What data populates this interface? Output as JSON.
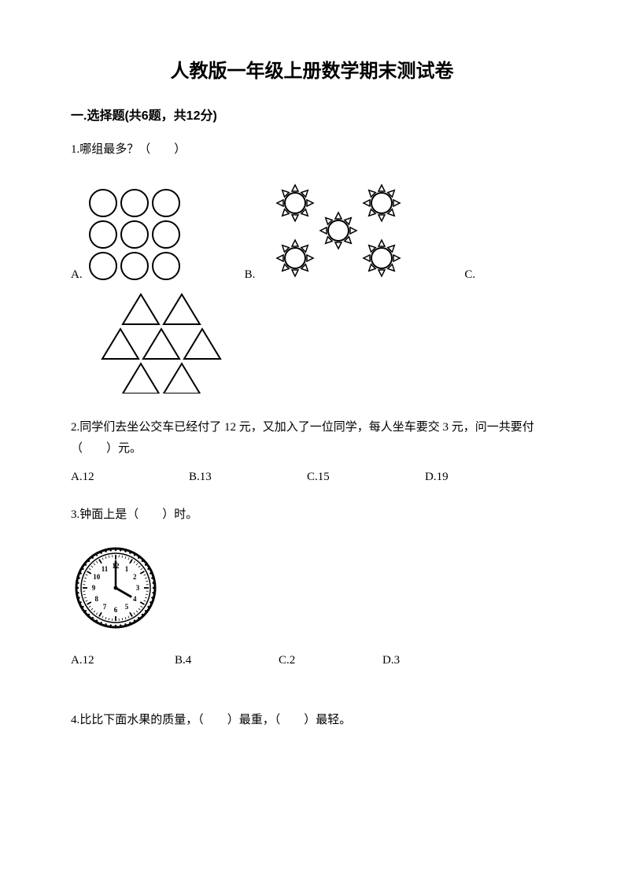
{
  "title": "人教版一年级上册数学期末测试卷",
  "section1": {
    "header": "一.选择题(共6题，共12分)"
  },
  "q1": {
    "text": "1.哪组最多？（　　）",
    "optA": "A.",
    "optB": "B.",
    "optC": "C.",
    "circles": {
      "rows": 3,
      "cols": 3,
      "stroke": "#000000",
      "fill": "#ffffff"
    },
    "suns": {
      "count": 5,
      "stroke": "#000000"
    },
    "triangles": {
      "rows": [
        2,
        3,
        2
      ],
      "stroke": "#000000"
    }
  },
  "q2": {
    "text": "2.同学们去坐公交车已经付了 12 元，又加入了一位同学，每人坐车要交 3 元，问一共要付（　　）元。",
    "optA": "A.12",
    "optB": "B.13",
    "optC": "C.15",
    "optD": "D.19"
  },
  "q3": {
    "text": "3.钟面上是（　　）时。",
    "clock": {
      "hour": 4,
      "minute": 0,
      "face": "#ffffff",
      "stroke": "#000000",
      "tick_stroke": "#000000"
    },
    "optA": "A.12",
    "optB": "B.4",
    "optC": "C.2",
    "optD": "D.3"
  },
  "q4": {
    "text": "4.比比下面水果的质量，（　　）最重，（　　）最轻。"
  }
}
